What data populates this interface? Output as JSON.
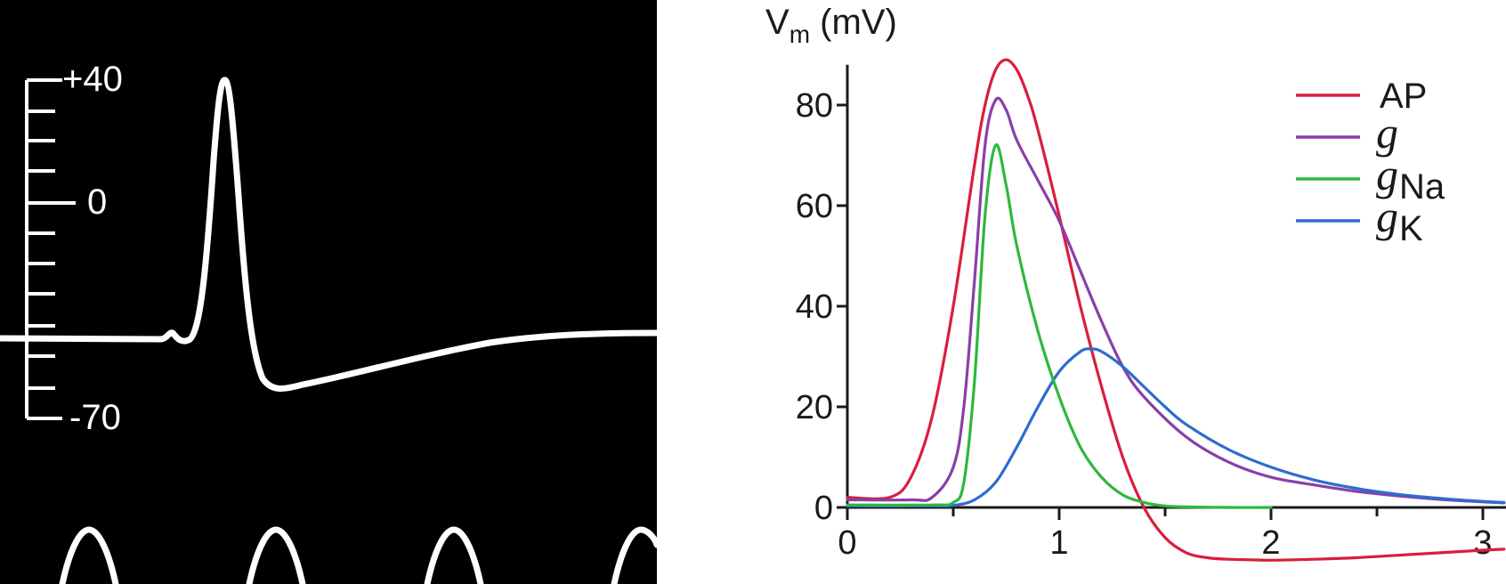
{
  "left_panel": {
    "scale_labels": {
      "top": "+40",
      "mid": "0",
      "bottom": "-70"
    },
    "colors": {
      "background": "#000000",
      "trace": "#ffffff"
    }
  },
  "chart_data": {
    "type": "line",
    "title": "",
    "ylabel_main": "V",
    "ylabel_sub": "m",
    "ylabel_unit": " (mV)",
    "xlabel": "",
    "xlim": [
      0,
      3.1
    ],
    "ylim": [
      -10,
      88
    ],
    "xticks": [
      0,
      1,
      2,
      3
    ],
    "xtick_labels": [
      "0",
      "1",
      "2",
      "3"
    ],
    "yticks": [
      0,
      20,
      40,
      60,
      80
    ],
    "ytick_labels": [
      "0",
      "20",
      "40",
      "60",
      "80"
    ],
    "legend_position": "top-right",
    "series": [
      {
        "key": "ap",
        "name": "AP",
        "name_sub": "",
        "color": "#d81e3c",
        "x": [
          0,
          0.2,
          0.3,
          0.4,
          0.5,
          0.6,
          0.65,
          0.7,
          0.75,
          0.8,
          0.85,
          0.9,
          1.0,
          1.1,
          1.2,
          1.3,
          1.4,
          1.5,
          1.6,
          1.7,
          1.8,
          1.9,
          2.0,
          2.2,
          2.4,
          2.6,
          2.8,
          3.0,
          3.1
        ],
        "y": [
          2,
          2,
          6,
          18,
          40,
          68,
          80,
          87,
          89,
          87,
          82,
          75,
          58,
          40,
          24,
          10,
          0,
          -6,
          -9,
          -10,
          -10.3,
          -10.4,
          -10.5,
          -10.3,
          -10,
          -9.5,
          -9,
          -8.5,
          -8.3
        ]
      },
      {
        "key": "g",
        "name": "g",
        "name_sub": "",
        "color": "#8a3fa8",
        "x": [
          0,
          0.3,
          0.4,
          0.5,
          0.55,
          0.6,
          0.65,
          0.7,
          0.75,
          0.8,
          0.9,
          1.0,
          1.1,
          1.2,
          1.3,
          1.4,
          1.6,
          1.8,
          2.0,
          2.2,
          2.4,
          2.6,
          2.8,
          3.0,
          3.1
        ],
        "y": [
          1.5,
          1.5,
          2,
          8,
          20,
          45,
          72,
          81,
          79,
          73,
          65,
          57,
          47,
          37,
          28,
          22,
          14,
          9,
          6,
          4.5,
          3.2,
          2.3,
          1.6,
          1.1,
          0.9
        ]
      },
      {
        "key": "g_na",
        "name": "g",
        "name_sub": "Na",
        "color": "#2db83d",
        "x": [
          0,
          0.4,
          0.5,
          0.55,
          0.6,
          0.65,
          0.7,
          0.75,
          0.8,
          0.9,
          1.0,
          1.1,
          1.2,
          1.3,
          1.4,
          1.5,
          1.6,
          1.8,
          2.0
        ],
        "y": [
          0.5,
          0.5,
          1,
          5,
          25,
          58,
          72,
          64,
          52,
          35,
          22,
          12,
          6,
          2.5,
          1,
          0.3,
          0.1,
          0,
          0
        ]
      },
      {
        "key": "g_k",
        "name": "g",
        "name_sub": "K",
        "color": "#2d6ccf",
        "x": [
          0,
          0.4,
          0.5,
          0.6,
          0.7,
          0.8,
          0.9,
          1.0,
          1.1,
          1.15,
          1.2,
          1.3,
          1.4,
          1.5,
          1.6,
          1.8,
          2.0,
          2.2,
          2.4,
          2.6,
          2.8,
          3.0,
          3.1
        ],
        "y": [
          0.3,
          0.3,
          0.4,
          1.5,
          5,
          12,
          20,
          27,
          31,
          31.5,
          31,
          28,
          24,
          20,
          16.5,
          11.5,
          8,
          5.5,
          3.8,
          2.6,
          1.8,
          1.2,
          1
        ]
      }
    ]
  }
}
